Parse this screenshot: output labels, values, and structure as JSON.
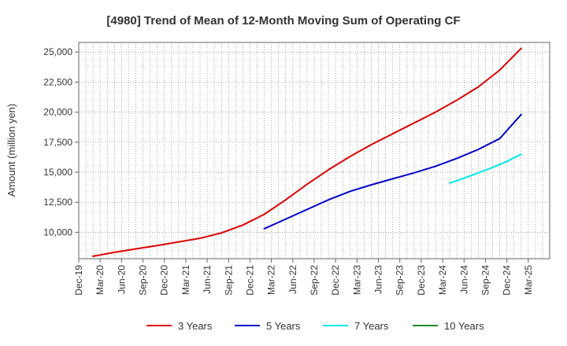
{
  "chart_data": {
    "type": "line",
    "title": "[4980]  Trend of Mean of 12-Month Moving Sum of Operating CF",
    "xlabel": "",
    "ylabel": "Amount (million yen)",
    "ylim": [
      7800,
      25800
    ],
    "yticks": [
      10000,
      12500,
      15000,
      17500,
      20000,
      22500,
      25000
    ],
    "ytick_labels": [
      "10,000",
      "12,500",
      "15,000",
      "17,500",
      "20,000",
      "22,500",
      "25,000"
    ],
    "x_range_months": [
      0,
      66
    ],
    "xticks": [
      "Dec-19",
      "Mar-20",
      "Jun-20",
      "Sep-20",
      "Dec-20",
      "Mar-21",
      "Jun-21",
      "Sep-21",
      "Dec-21",
      "Mar-22",
      "Jun-22",
      "Sep-22",
      "Dec-22",
      "Mar-23",
      "Jun-23",
      "Sep-23",
      "Dec-23",
      "Mar-24",
      "Jun-24",
      "Sep-24",
      "Dec-24",
      "Mar-25"
    ],
    "grid": true,
    "legend_position": "bottom",
    "series": [
      {
        "name": "3 Years",
        "color": "#dd0000",
        "x": [
          2,
          5,
          8,
          11,
          14,
          17,
          20,
          23,
          26,
          29,
          32,
          35,
          38,
          41,
          44,
          47,
          50,
          53,
          56,
          59,
          62
        ],
        "values": [
          8000,
          8330,
          8620,
          8900,
          9200,
          9500,
          9950,
          10600,
          11500,
          12700,
          14000,
          15200,
          16300,
          17300,
          18200,
          19100,
          20000,
          21000,
          22100,
          23500,
          25300
        ]
      },
      {
        "name": "5 Years",
        "color": "#0000cc",
        "x": [
          26,
          29,
          32,
          35,
          38,
          41,
          44,
          47,
          50,
          53,
          56,
          59,
          62
        ],
        "values": [
          10300,
          11100,
          11900,
          12700,
          13400,
          13950,
          14450,
          14950,
          15500,
          16150,
          16900,
          17800,
          19800
        ]
      },
      {
        "name": "7 Years",
        "color": "#00e5ee",
        "x": [
          52,
          54,
          56,
          58,
          60,
          62
        ],
        "values": [
          14100,
          14500,
          14950,
          15400,
          15900,
          16500
        ]
      },
      {
        "name": "10 Years",
        "color": "#228b22",
        "x": [],
        "values": []
      }
    ]
  }
}
